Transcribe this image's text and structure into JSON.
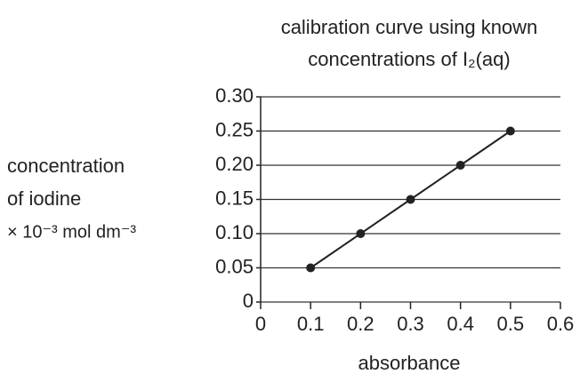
{
  "chart_data": {
    "type": "line",
    "title": [
      "calibration curve using known",
      "concentrations of I₂(aq)"
    ],
    "ylabel": [
      "concentration",
      "of iodine",
      "× 10⁻³ mol dm⁻³"
    ],
    "xlabel": "absorbance",
    "x": [
      0.1,
      0.2,
      0.3,
      0.4,
      0.5
    ],
    "series": [
      {
        "color": "#222222",
        "values": [
          0.05,
          0.1,
          0.15,
          0.2,
          0.25
        ]
      }
    ],
    "xlim": [
      0,
      0.6
    ],
    "xticks": [
      0,
      0.1,
      0.2,
      0.3,
      0.4,
      0.5,
      0.6
    ],
    "ylim": [
      0,
      0.3
    ],
    "yticks": [
      0,
      0.05,
      {
        "value": 0.1,
        "label": "0.10"
      },
      0.15,
      {
        "value": 0.2,
        "label": "0.20"
      },
      0.25,
      {
        "value": 0.3,
        "label": "0.30"
      }
    ],
    "grid": true,
    "markers": true
  }
}
